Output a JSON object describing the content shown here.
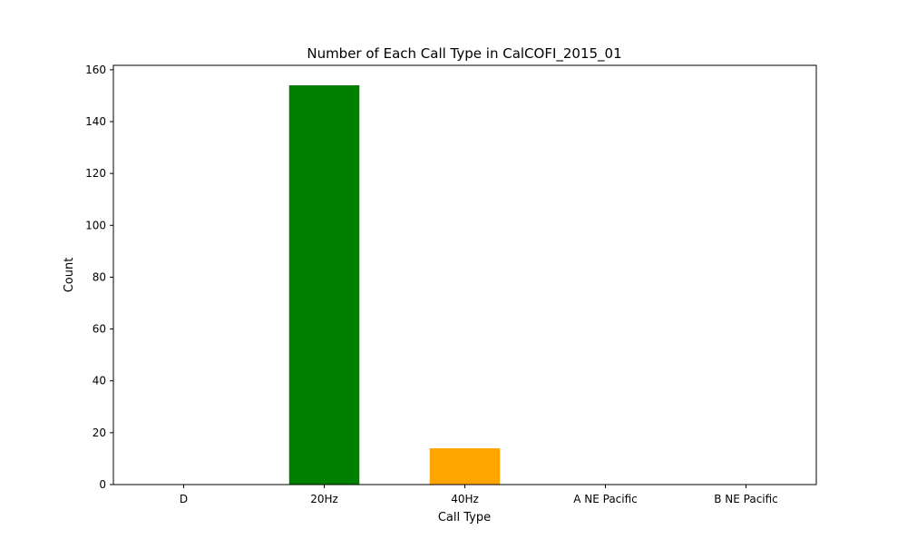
{
  "chart_data": {
    "type": "bar",
    "title": "Number of Each Call Type in CalCOFI_2015_01",
    "xlabel": "Call Type",
    "ylabel": "Count",
    "categories": [
      "D",
      "20Hz",
      "40Hz",
      "A NE Pacific",
      "B NE Pacific"
    ],
    "values": [
      0,
      154,
      14,
      0,
      0
    ],
    "colors": [
      "#1f77b4",
      "#008000",
      "#ffa500",
      "#1f77b4",
      "#1f77b4"
    ],
    "ylim": [
      0,
      161.7
    ],
    "yticks": [
      0,
      20,
      40,
      60,
      80,
      100,
      120,
      140,
      160
    ],
    "grid": false,
    "legend": "none"
  }
}
